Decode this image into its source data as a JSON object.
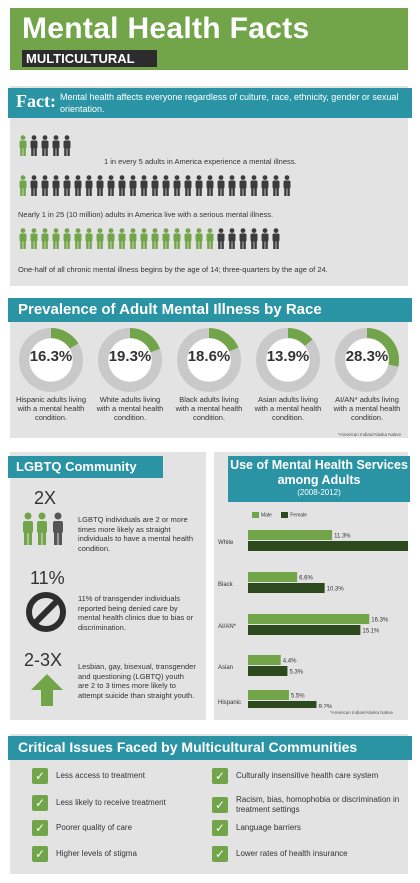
{
  "header": {
    "title": "Mental Health Facts",
    "subtitle": "MULTICULTURAL"
  },
  "fact": {
    "label": "Fact:",
    "text": "Mental health affects everyone regardless of culture, race, ethnicity, gender or sexual orientation.",
    "rows": [
      {
        "caption": "1 in every 5 adults in America experience a mental illness.",
        "total": 5,
        "highlight": 1
      },
      {
        "caption": "Nearly 1 in 25 (10 million) adults in America live with a serious mental illness.",
        "total": 25,
        "highlight": 1
      },
      {
        "caption": "One-half of all chronic mental illness begins by the age of 14; three-quarters by the age of 24.",
        "total": 24,
        "highlight": 18
      }
    ]
  },
  "prevalence": {
    "title": "Prevalence of Adult Mental Illness by Race",
    "note": "*American Indian/Alaska Native",
    "items": [
      {
        "value": "16.3%",
        "pct": 16.3,
        "label": "Hispanic adults living with a mental health condition."
      },
      {
        "value": "19.3%",
        "pct": 19.3,
        "label": "White adults living with a mental health condition."
      },
      {
        "value": "18.6%",
        "pct": 18.6,
        "label": "Black adults living with a mental health condition."
      },
      {
        "value": "13.9%",
        "pct": 13.9,
        "label": "Asian adults living with a mental health condition."
      },
      {
        "value": "28.3%",
        "pct": 28.3,
        "label": "AI/AN* adults living with a mental health condition."
      }
    ]
  },
  "lgbtq": {
    "title": "LGBTQ Community",
    "stats": [
      {
        "value": "2X",
        "text": "LGBTQ individuals are 2 or more times more likely as straight individuals to have a mental health condition."
      },
      {
        "value": "11%",
        "text": "11% of transgender individuals reported being denied care by mental health clinics due to bias or discrimination."
      },
      {
        "value": "2-3X",
        "text": "Lesbian, gay, bisexual, transgender and questioning (LGBTQ) youth are 2 to 3 times more likely to attempt suicide than straight youth."
      }
    ]
  },
  "services": {
    "title": "Use of Mental Health Services among Adults",
    "years": "(2008-2012)",
    "note": "*American Indian/Alaska Native"
  },
  "chart_data": {
    "type": "bar",
    "orientation": "horizontal",
    "title": "Use of Mental Health Services among Adults",
    "subtitle": "(2008-2012)",
    "categories": [
      "White",
      "Black",
      "AI/AN*",
      "Asian",
      "Hispanic"
    ],
    "series": [
      {
        "name": "Male",
        "color": "#72a54a",
        "values": [
          11.3,
          6.6,
          16.3,
          4.4,
          5.5
        ],
        "labels": [
          "11.3%",
          "6.6%",
          "16.3%",
          "4.4%",
          "5.5%"
        ]
      },
      {
        "name": "Female",
        "color": "#2d4a1e",
        "values": [
          21.5,
          10.3,
          15.1,
          5.3,
          9.2
        ],
        "labels": [
          "21.5%",
          "10.3%",
          "15.1%",
          "5.3%",
          "9.2%"
        ]
      }
    ],
    "grid": false,
    "legend": "top-left"
  },
  "critical": {
    "title": "Critical Issues Faced by Multicultural Communities",
    "left": [
      "Less access to treatment",
      "Less likely to receive treatment",
      "Poorer quality of care",
      "Higher levels of stigma"
    ],
    "right": [
      "Culturally insensitive health care system",
      "Racism, bias, homophobia or discrimination in treatment settings",
      "Language barriers",
      "Lower rates of health insurance"
    ]
  },
  "colors": {
    "green": "#72a54a",
    "dark_green": "#2d4a1e",
    "teal": "#2a94a5",
    "gray_ring": "#c9c9c9",
    "dark": "#3c3c3c"
  },
  "icons": [
    "person-icon",
    "no-symbol-icon",
    "up-arrow-icon",
    "check-icon"
  ]
}
